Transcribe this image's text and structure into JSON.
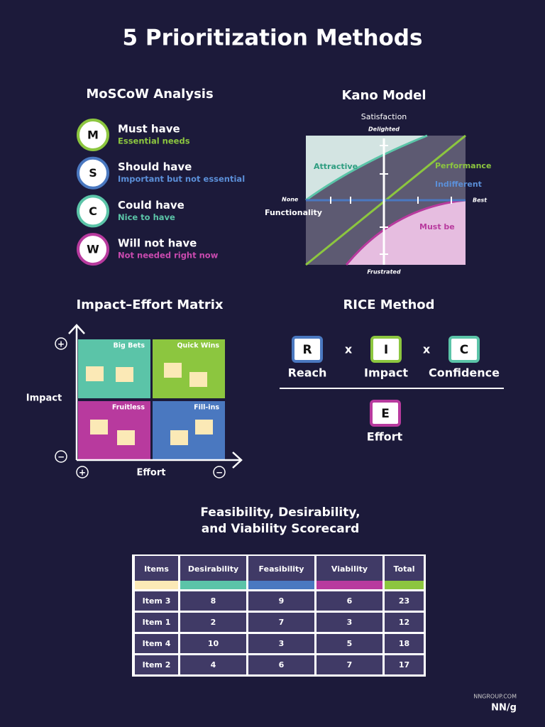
{
  "title": "5 Prioritization Methods",
  "moscow": {
    "title": "MoSCoW Analysis",
    "items": [
      {
        "letter": "M",
        "label": "Must have",
        "desc": "Essential needs"
      },
      {
        "letter": "S",
        "label": "Should have",
        "desc": "Important but not essential"
      },
      {
        "letter": "C",
        "label": "Could have",
        "desc": "Nice to have"
      },
      {
        "letter": "W",
        "label": "Will not have",
        "desc": "Not needed right now"
      }
    ]
  },
  "kano": {
    "title": "Kano Model",
    "y_label": "Satisfaction",
    "top": "Delighted",
    "bottom": "Frustrated",
    "left": "None",
    "right": "Best",
    "x_label": "Functionality",
    "curves": [
      "Attractive",
      "Performance",
      "Indifferent",
      "Must be"
    ]
  },
  "matrix": {
    "title": "Impact–Effort Matrix",
    "y_label": "Impact",
    "x_label": "Effort",
    "quadrants": [
      "Big Bets",
      "Quick Wins",
      "Fruitless",
      "Fill-ins"
    ],
    "plus": "+",
    "minus": "−"
  },
  "rice": {
    "title": "RICE Method",
    "factors": [
      {
        "letter": "R",
        "label": "Reach"
      },
      {
        "letter": "I",
        "label": "Impact"
      },
      {
        "letter": "C",
        "label": "Confidence"
      }
    ],
    "operator": "x",
    "denominator": {
      "letter": "E",
      "label": "Effort"
    }
  },
  "scorecard": {
    "title_lines": [
      "Feasibility, Desirability,",
      "and Viability Scorecard"
    ],
    "headers": [
      "Items",
      "Desirability",
      "Feasibility",
      "Viability",
      "Total"
    ],
    "rows": [
      [
        "Item 3",
        8,
        9,
        6,
        23
      ],
      [
        "Item 1",
        2,
        7,
        3,
        12
      ],
      [
        "Item 4",
        10,
        3,
        5,
        18
      ],
      [
        "Item 2",
        4,
        6,
        7,
        17
      ]
    ]
  },
  "footer": {
    "site": "NNGROUP.COM",
    "logo": "NN/g"
  }
}
